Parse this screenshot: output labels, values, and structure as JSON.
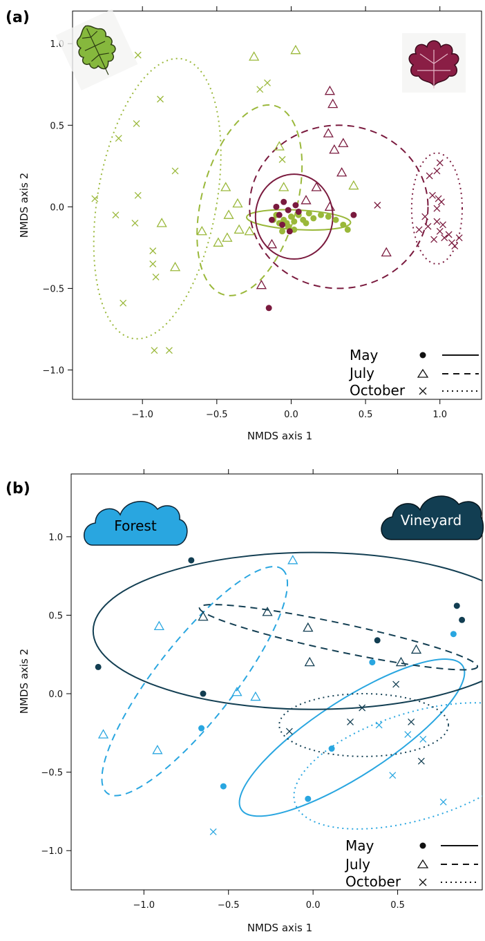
{
  "colors": {
    "forest_a": "#9ab83a",
    "vineyard_a": "#7a1a3e",
    "forest_b": "#29a6e0",
    "vineyard_b": "#123e52",
    "oak_leaf": "#86b83d",
    "vine_leaf": "#8a1e45"
  },
  "legend": {
    "may": "May",
    "july": "July",
    "october": "October"
  },
  "icons": {
    "oak": "oak-leaf-icon",
    "vine": "grape-leaf-icon",
    "forest_cloud": "forest-cloud-icon",
    "vineyard_cloud": "vineyard-cloud-icon"
  },
  "chart_data": [
    {
      "panel_label": "(a)",
      "type": "scatter",
      "xlabel": "NMDS axis 1",
      "ylabel": "NMDS axis 2",
      "xlim": [
        -1.47,
        1.28
      ],
      "ylim": [
        -1.18,
        1.2
      ],
      "xticks": [
        -1.0,
        -0.5,
        0.0,
        0.5,
        1.0
      ],
      "xtick_labels": [
        "−1.0",
        "−0.5",
        "0.0",
        "0.5",
        "1.0"
      ],
      "yticks": [
        -1.0,
        -0.5,
        0.0,
        0.5,
        1.0
      ],
      "ytick_labels": [
        "−1.0",
        "−0.5",
        "0.0",
        "0.5",
        "1.0"
      ],
      "groups": [
        {
          "habitat": "Forest",
          "month": "May",
          "color_key": "forest_a",
          "marker": "circle",
          "points": [
            [
              -0.1,
              -0.05
            ],
            [
              -0.08,
              -0.1
            ],
            [
              -0.05,
              -0.08
            ],
            [
              -0.03,
              -0.1
            ],
            [
              0.0,
              -0.06
            ],
            [
              0.02,
              -0.09
            ],
            [
              -0.02,
              -0.12
            ],
            [
              0.05,
              -0.05
            ],
            [
              0.08,
              -0.08
            ],
            [
              0.12,
              -0.04
            ],
            [
              0.15,
              -0.07
            ],
            [
              0.2,
              -0.05
            ],
            [
              0.25,
              -0.06
            ],
            [
              0.3,
              -0.08
            ],
            [
              0.35,
              -0.11
            ],
            [
              -0.06,
              -0.15
            ],
            [
              0.02,
              -0.14
            ],
            [
              -0.12,
              -0.08
            ],
            [
              0.1,
              -0.1
            ],
            [
              0.38,
              -0.14
            ]
          ]
        },
        {
          "habitat": "Vineyard",
          "month": "May",
          "color_key": "vineyard_a",
          "marker": "circle",
          "points": [
            [
              -0.1,
              0.0
            ],
            [
              -0.05,
              0.03
            ],
            [
              -0.02,
              -0.02
            ],
            [
              0.03,
              0.01
            ],
            [
              -0.08,
              -0.05
            ],
            [
              -0.13,
              -0.08
            ],
            [
              -0.06,
              -0.11
            ],
            [
              -0.01,
              -0.15
            ],
            [
              0.05,
              -0.03
            ],
            [
              -0.15,
              -0.62
            ],
            [
              0.42,
              -0.05
            ]
          ]
        },
        {
          "habitat": "Forest",
          "month": "July",
          "color_key": "forest_a",
          "marker": "triangle",
          "points": [
            [
              -0.25,
              0.92
            ],
            [
              0.03,
              0.96
            ],
            [
              -0.08,
              0.37
            ],
            [
              -0.05,
              0.12
            ],
            [
              -0.44,
              0.12
            ],
            [
              -0.36,
              0.02
            ],
            [
              -0.42,
              -0.05
            ],
            [
              -0.6,
              -0.15
            ],
            [
              -0.35,
              -0.14
            ],
            [
              -0.28,
              -0.15
            ],
            [
              -0.49,
              -0.22
            ],
            [
              -0.43,
              -0.19
            ],
            [
              -0.87,
              -0.1
            ],
            [
              -0.78,
              -0.37
            ],
            [
              0.42,
              0.13
            ]
          ]
        },
        {
          "habitat": "Vineyard",
          "month": "July",
          "color_key": "vineyard_a",
          "marker": "triangle",
          "points": [
            [
              0.26,
              0.71
            ],
            [
              0.28,
              0.63
            ],
            [
              0.25,
              0.45
            ],
            [
              0.29,
              0.35
            ],
            [
              0.35,
              0.39
            ],
            [
              0.34,
              0.21
            ],
            [
              0.17,
              0.12
            ],
            [
              0.26,
              0.0
            ],
            [
              0.64,
              -0.28
            ],
            [
              -0.2,
              -0.48
            ],
            [
              -0.13,
              -0.23
            ],
            [
              0.1,
              0.04
            ]
          ]
        },
        {
          "habitat": "Forest",
          "month": "October",
          "color_key": "forest_a",
          "marker": "x",
          "points": [
            [
              -1.03,
              0.93
            ],
            [
              -0.88,
              0.66
            ],
            [
              -1.04,
              0.51
            ],
            [
              -1.16,
              0.42
            ],
            [
              -0.78,
              0.22
            ],
            [
              -1.32,
              0.05
            ],
            [
              -1.03,
              0.07
            ],
            [
              -1.18,
              -0.05
            ],
            [
              -1.05,
              -0.1
            ],
            [
              -0.93,
              -0.27
            ],
            [
              -0.93,
              -0.35
            ],
            [
              -0.91,
              -0.43
            ],
            [
              -1.13,
              -0.59
            ],
            [
              -0.92,
              -0.88
            ],
            [
              -0.82,
              -0.88
            ],
            [
              -0.21,
              0.72
            ],
            [
              -0.16,
              0.76
            ],
            [
              -0.06,
              0.29
            ]
          ]
        },
        {
          "habitat": "Vineyard",
          "month": "October",
          "color_key": "vineyard_a",
          "marker": "x",
          "points": [
            [
              1.0,
              0.27
            ],
            [
              0.98,
              0.22
            ],
            [
              0.93,
              0.19
            ],
            [
              0.95,
              0.07
            ],
            [
              0.98,
              -0.01
            ],
            [
              0.99,
              0.05
            ],
            [
              1.01,
              0.03
            ],
            [
              0.9,
              -0.06
            ],
            [
              0.92,
              -0.12
            ],
            [
              0.98,
              -0.09
            ],
            [
              1.0,
              -0.15
            ],
            [
              0.96,
              -0.2
            ],
            [
              1.03,
              -0.19
            ],
            [
              1.06,
              -0.17
            ],
            [
              1.08,
              -0.22
            ],
            [
              1.1,
              -0.24
            ],
            [
              1.13,
              -0.19
            ],
            [
              1.02,
              -0.11
            ],
            [
              0.58,
              0.01
            ],
            [
              0.86,
              -0.14
            ]
          ]
        }
      ],
      "ellipses": [
        {
          "group": "Forest May",
          "color_key": "forest_a",
          "line": "solid",
          "cx": 0.05,
          "cy": -0.08,
          "rx": 0.35,
          "ry": 0.06,
          "angle_deg": -3
        },
        {
          "group": "Vineyard May",
          "color_key": "vineyard_a",
          "line": "solid",
          "cx": 0.02,
          "cy": -0.06,
          "rx": 0.26,
          "ry": 0.26,
          "angle_deg": 0
        },
        {
          "group": "Forest July",
          "color_key": "forest_a",
          "line": "dashed",
          "cx": -0.28,
          "cy": 0.04,
          "rx": 0.32,
          "ry": 0.6,
          "angle_deg": -15
        },
        {
          "group": "Vineyard July",
          "color_key": "vineyard_a",
          "line": "dashed",
          "cx": 0.32,
          "cy": 0.0,
          "rx": 0.6,
          "ry": 0.5,
          "angle_deg": 0
        },
        {
          "group": "Forest October",
          "color_key": "forest_a",
          "line": "dotted",
          "cx": -0.9,
          "cy": 0.05,
          "rx": 0.4,
          "ry": 0.87,
          "angle_deg": -10
        },
        {
          "group": "Vineyard October",
          "color_key": "vineyard_a",
          "line": "dotted",
          "cx": 0.98,
          "cy": -0.01,
          "rx": 0.17,
          "ry": 0.34,
          "angle_deg": 0
        }
      ]
    },
    {
      "panel_label": "(b)",
      "type": "scatter",
      "xlabel": "NMDS axis 1",
      "ylabel": "NMDS axis 2",
      "xlim": [
        -1.43,
        1.0
      ],
      "ylim": [
        -1.25,
        1.4
      ],
      "xticks": [
        -1.0,
        -0.5,
        0.0,
        0.5
      ],
      "xtick_labels": [
        "−1.0",
        "−0.5",
        "0.0",
        "0.5"
      ],
      "yticks": [
        -1.0,
        -0.5,
        0.0,
        0.5,
        1.0
      ],
      "ytick_labels": [
        "−1.0",
        "−0.5",
        "0.0",
        "0.5",
        "1.0"
      ],
      "groups": [
        {
          "habitat": "Forest",
          "month": "May",
          "color_key": "forest_b",
          "marker": "circle",
          "points": [
            [
              -0.66,
              -0.22
            ],
            [
              -0.53,
              -0.59
            ],
            [
              -0.03,
              -0.67
            ],
            [
              0.11,
              -0.35
            ],
            [
              0.35,
              0.2
            ],
            [
              0.83,
              0.38
            ]
          ]
        },
        {
          "habitat": "Vineyard",
          "month": "May",
          "color_key": "vineyard_b",
          "marker": "circle",
          "points": [
            [
              -0.72,
              0.85
            ],
            [
              -1.27,
              0.17
            ],
            [
              -0.65,
              0.0
            ],
            [
              0.38,
              0.34
            ],
            [
              0.85,
              0.56
            ],
            [
              0.88,
              0.47
            ]
          ]
        },
        {
          "habitat": "Forest",
          "month": "July",
          "color_key": "forest_b",
          "marker": "triangle",
          "points": [
            [
              -0.12,
              0.85
            ],
            [
              -0.91,
              0.43
            ],
            [
              -1.24,
              -0.26
            ],
            [
              -0.92,
              -0.36
            ],
            [
              -0.45,
              0.01
            ],
            [
              -0.34,
              -0.02
            ]
          ]
        },
        {
          "habitat": "Vineyard",
          "month": "July",
          "color_key": "vineyard_b",
          "marker": "triangle",
          "points": [
            [
              -0.65,
              0.49
            ],
            [
              -0.27,
              0.52
            ],
            [
              -0.03,
              0.42
            ],
            [
              -0.02,
              0.2
            ],
            [
              0.52,
              0.2
            ],
            [
              0.61,
              0.28
            ]
          ]
        },
        {
          "habitat": "Forest",
          "month": "October",
          "color_key": "forest_b",
          "marker": "x",
          "points": [
            [
              -0.59,
              -0.88
            ],
            [
              0.39,
              -0.2
            ],
            [
              0.47,
              -0.52
            ],
            [
              0.56,
              -0.26
            ],
            [
              0.65,
              -0.29
            ],
            [
              0.77,
              -0.69
            ]
          ]
        },
        {
          "habitat": "Vineyard",
          "month": "October",
          "color_key": "vineyard_b",
          "marker": "x",
          "points": [
            [
              -0.14,
              -0.24
            ],
            [
              0.22,
              -0.18
            ],
            [
              0.29,
              -0.09
            ],
            [
              0.49,
              0.06
            ],
            [
              0.58,
              -0.18
            ],
            [
              0.64,
              -0.43
            ]
          ]
        }
      ],
      "ellipses": [
        {
          "group": "Forest May",
          "color_key": "forest_b",
          "line": "solid",
          "cx": 0.23,
          "cy": -0.28,
          "rx": 0.78,
          "ry": 0.24,
          "angle_deg": 33
        },
        {
          "group": "Vineyard May",
          "color_key": "vineyard_b",
          "line": "solid",
          "cx": 0.0,
          "cy": 0.4,
          "rx": 1.3,
          "ry": 0.5,
          "angle_deg": 0
        },
        {
          "group": "Forest July",
          "color_key": "forest_b",
          "line": "dashed",
          "cx": -0.7,
          "cy": 0.08,
          "rx": 0.84,
          "ry": 0.25,
          "angle_deg": 52
        },
        {
          "group": "Vineyard July",
          "color_key": "vineyard_b",
          "line": "dashed",
          "cx": 0.15,
          "cy": 0.36,
          "rx": 0.84,
          "ry": 0.09,
          "angle_deg": -12
        },
        {
          "group": "Forest October",
          "color_key": "forest_b",
          "line": "dotted",
          "cx": 0.61,
          "cy": -0.46,
          "rx": 0.75,
          "ry": 0.34,
          "angle_deg": 17
        },
        {
          "group": "Vineyard October",
          "color_key": "vineyard_b",
          "line": "dotted",
          "cx": 0.3,
          "cy": -0.2,
          "rx": 0.5,
          "ry": 0.2,
          "angle_deg": 0
        }
      ],
      "annotations": [
        {
          "text": "Forest",
          "color_key": "forest_b"
        },
        {
          "text": "Vineyard",
          "color_key": "vineyard_b"
        }
      ]
    }
  ]
}
